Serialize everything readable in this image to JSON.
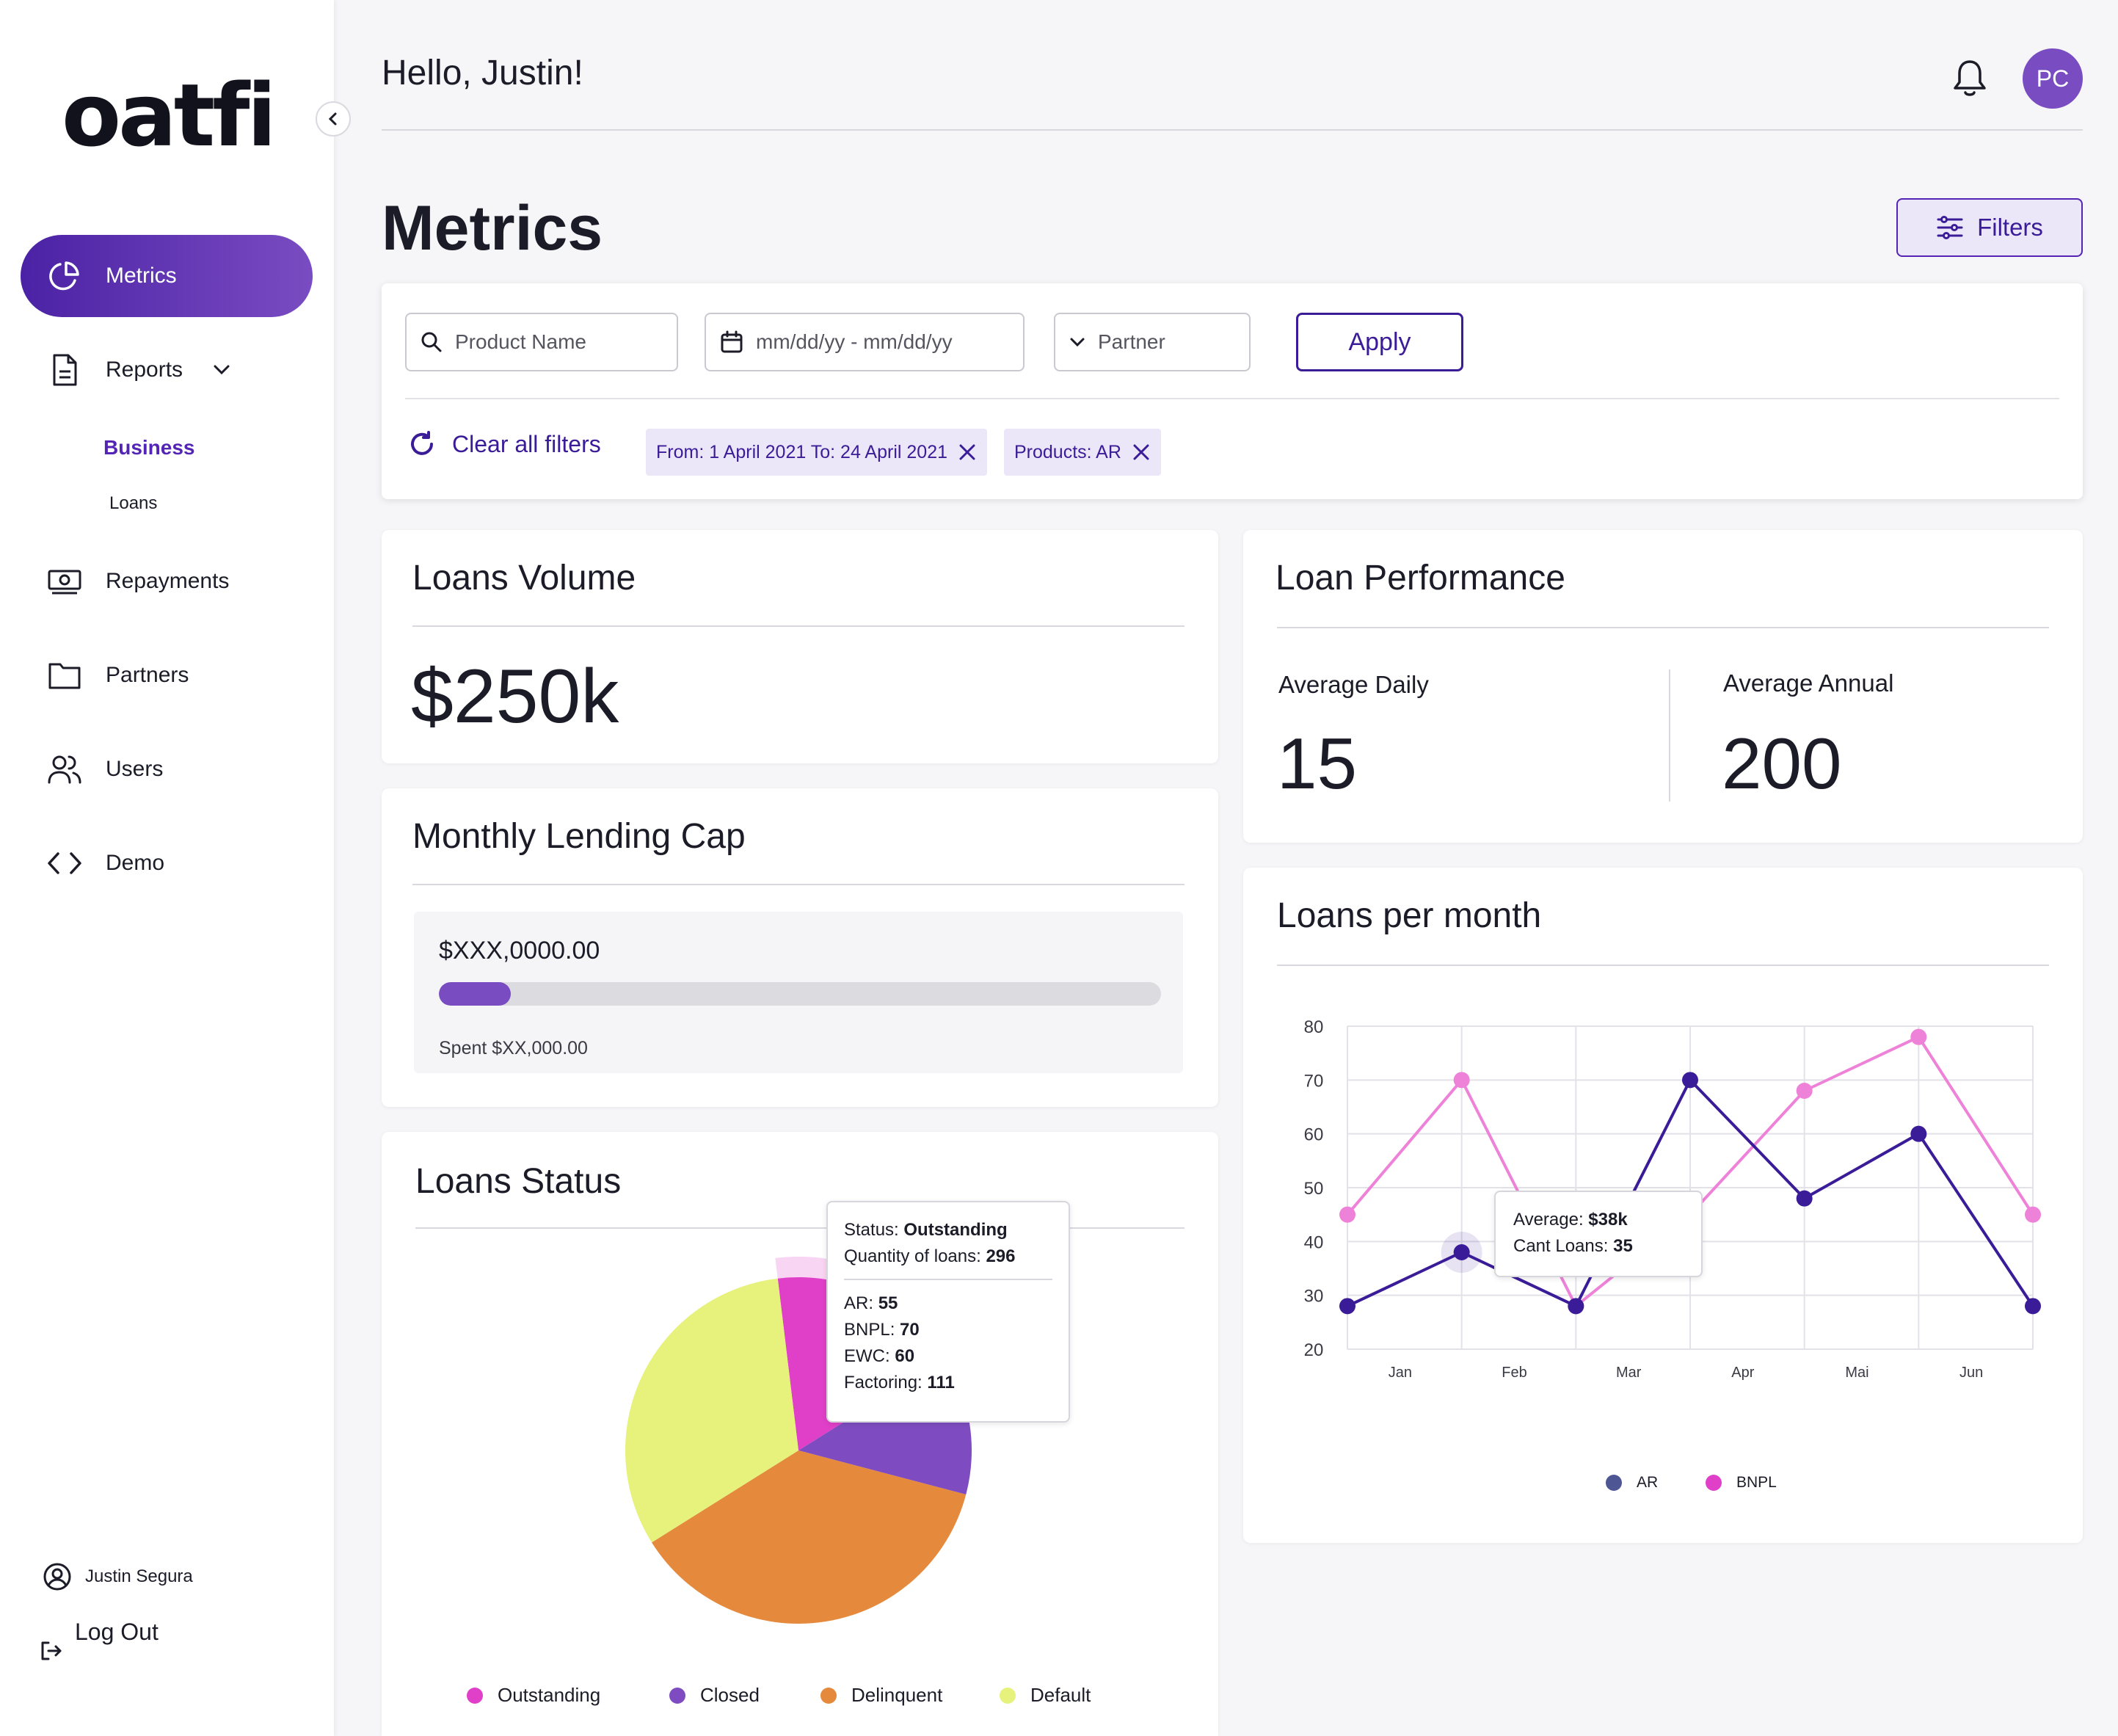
{
  "brand": {
    "logo_text": "oatfi"
  },
  "sidebar": {
    "items": [
      {
        "label": "Metrics",
        "icon": "pie-chart-icon"
      },
      {
        "label": "Reports",
        "icon": "document-icon"
      },
      {
        "label": "Repayments",
        "icon": "cash-icon"
      },
      {
        "label": "Partners",
        "icon": "folder-icon"
      },
      {
        "label": "Users",
        "icon": "users-icon"
      },
      {
        "label": "Demo",
        "icon": "code-icon"
      }
    ],
    "reports_sub": [
      "Business",
      "Loans"
    ],
    "user_name": "Justin Segura",
    "logout_label": "Log Out"
  },
  "header": {
    "greeting": "Hello, Justin!",
    "avatar_initials": "PC"
  },
  "page": {
    "title": "Metrics",
    "filters_button": "Filters"
  },
  "filters": {
    "product_placeholder": "Product Name",
    "date_placeholder": "mm/dd/yy - mm/dd/yy",
    "partner_placeholder": "Partner",
    "apply_label": "Apply",
    "clear_label": "Clear all filters",
    "chips": [
      "From: 1 April 2021 To: 24 April 2021",
      "Products: AR"
    ]
  },
  "loans_volume": {
    "title": "Loans Volume",
    "value": "$250k"
  },
  "lending_cap": {
    "title": "Monthly Lending Cap",
    "amount": "$XXX,0000.00",
    "spent": "Spent $XX,000.00",
    "progress_fraction": 0.1
  },
  "loans_status": {
    "title": "Loans Status",
    "tooltip": {
      "status_label": "Status:",
      "status_value": "Outstanding",
      "qty_label": "Quantity of loans:",
      "qty_value": "296",
      "rows": [
        {
          "label": "AR:",
          "value": "55"
        },
        {
          "label": "BNPL:",
          "value": "70"
        },
        {
          "label": "EWC:",
          "value": "60"
        },
        {
          "label": "Factoring:",
          "value": "111"
        }
      ]
    }
  },
  "loan_performance": {
    "title": "Loan Performance",
    "avg_daily_label": "Average Daily",
    "avg_daily_value": "15",
    "avg_annual_label": "Average Annual",
    "avg_annual_value": "200"
  },
  "loans_per_month": {
    "title": "Loans per month",
    "tooltip": {
      "avg_label": "Average:",
      "avg_value": "$38k",
      "count_label": "Cant Loans:",
      "count_value": "35"
    }
  },
  "colors": {
    "accent": "#5425b5",
    "ar": "#3b1c98",
    "bnpl": "#ee82d8"
  },
  "chart_data": [
    {
      "type": "pie",
      "title": "Loans Status",
      "categories": [
        "Outstanding",
        "Closed",
        "Delinquent",
        "Default"
      ],
      "values": [
        18,
        13,
        37,
        32
      ],
      "colors": [
        "#e040c8",
        "#7e4cc0",
        "#e58a3c",
        "#e6f27c"
      ],
      "legend": "bottom"
    },
    {
      "type": "line",
      "title": "Loans per month",
      "x_tick_labels": [
        "Jan",
        "Feb",
        "Mar",
        "Apr",
        "Mai",
        "Jun"
      ],
      "x": [
        0,
        1,
        2,
        3,
        4,
        5,
        6
      ],
      "ylim": [
        20,
        80
      ],
      "y_ticks": [
        80,
        70,
        60,
        50,
        40,
        30,
        20
      ],
      "grid": true,
      "legend": "bottom",
      "series": [
        {
          "name": "AR",
          "color": "#3b1c98",
          "legend_color": "#4e5694",
          "values": [
            28,
            38,
            28,
            70,
            48,
            60,
            28
          ]
        },
        {
          "name": "BNPL",
          "color": "#ee82d8",
          "legend_color": "#e040c8",
          "values": [
            45,
            70,
            28,
            45,
            68,
            78,
            45
          ]
        }
      ]
    }
  ]
}
